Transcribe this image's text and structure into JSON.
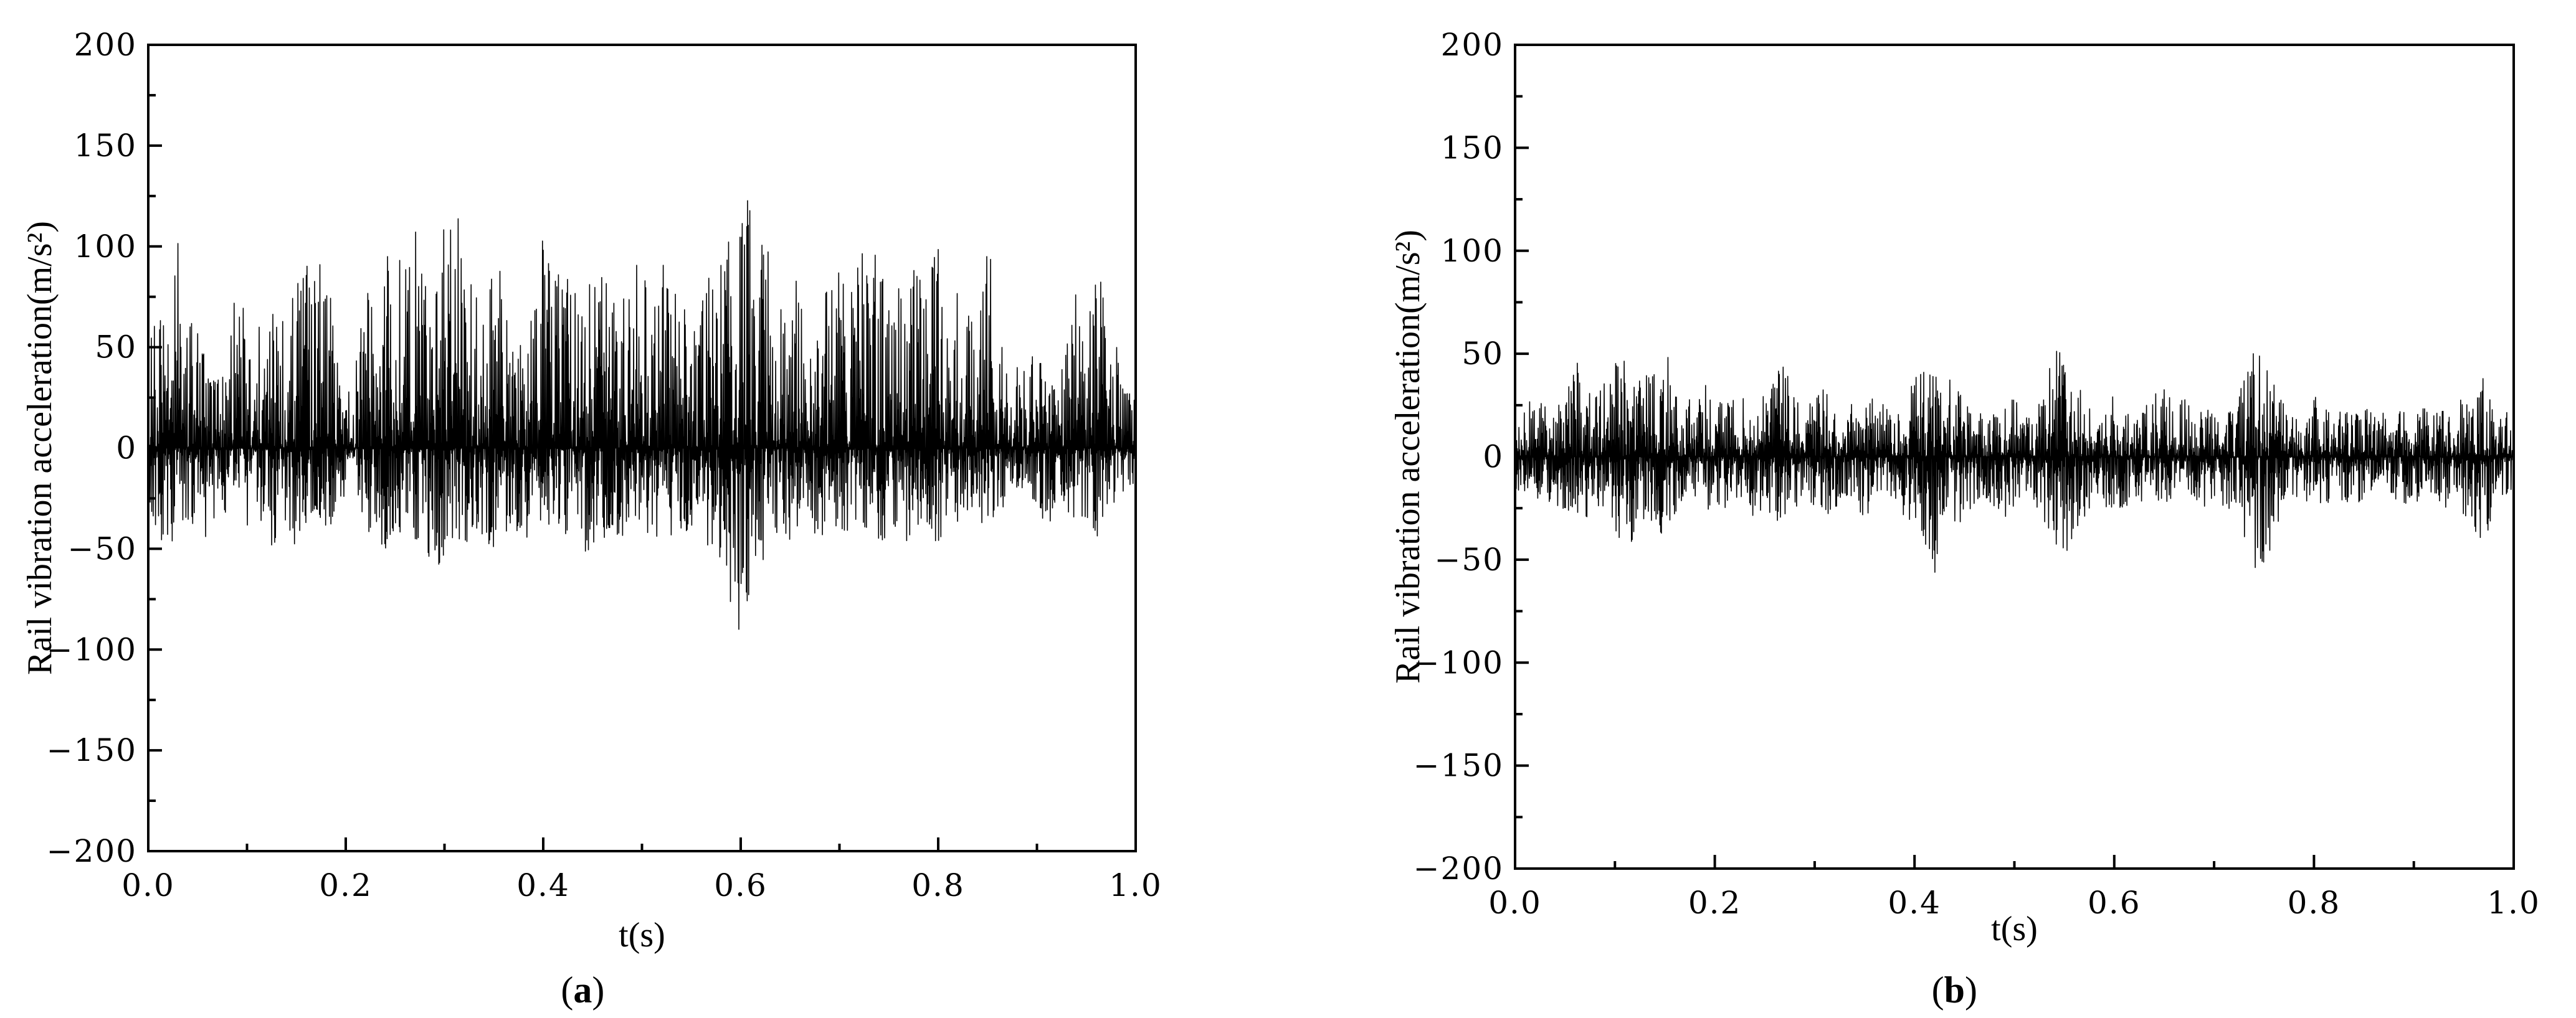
{
  "chart_data": [
    {
      "type": "line",
      "panel_label": "a",
      "title": "",
      "xlabel": "t(s)",
      "ylabel": "Rail vibration acceleration(m/s²)",
      "xlim": [
        0.0,
        1.0
      ],
      "ylim": [
        -200,
        200
      ],
      "xticks": [
        "0.0",
        "0.2",
        "0.4",
        "0.6",
        "0.8",
        "1.0"
      ],
      "yticks": [
        "200",
        "150",
        "100",
        "50",
        "0",
        "−50",
        "−100",
        "−150",
        "−200"
      ],
      "grid": false,
      "line_color": "#000000",
      "series": [
        {
          "x": [
            0.0,
            0.01,
            0.02,
            0.03,
            0.04,
            0.05,
            0.06,
            0.07,
            0.08,
            0.09,
            0.1,
            0.11,
            0.12,
            0.13,
            0.14,
            0.15,
            0.16,
            0.17,
            0.18,
            0.19,
            0.2,
            0.21,
            0.22,
            0.23,
            0.24,
            0.25,
            0.26,
            0.27,
            0.28,
            0.29,
            0.3,
            0.31,
            0.32,
            0.33,
            0.34,
            0.35,
            0.36,
            0.37,
            0.38,
            0.39,
            0.4,
            0.41,
            0.42,
            0.43,
            0.44,
            0.45,
            0.46,
            0.47,
            0.48,
            0.49,
            0.5,
            0.51,
            0.52,
            0.53,
            0.54,
            0.55,
            0.56,
            0.57,
            0.58,
            0.59,
            0.6,
            0.61,
            0.62,
            0.63,
            0.64,
            0.65,
            0.66,
            0.67,
            0.68,
            0.69,
            0.7,
            0.71,
            0.72,
            0.73,
            0.74,
            0.75,
            0.76,
            0.77,
            0.78,
            0.79,
            0.8,
            0.81,
            0.82,
            0.83,
            0.84,
            0.85,
            0.86,
            0.87,
            0.88,
            0.89,
            0.9,
            0.91,
            0.92,
            0.93,
            0.94,
            0.95,
            0.96,
            0.97,
            0.98,
            0.99,
            1.0
          ],
          "max": [
            55,
            68,
            60,
            105,
            70,
            60,
            45,
            35,
            50,
            85,
            75,
            60,
            95,
            75,
            60,
            100,
            95,
            90,
            100,
            45,
            30,
            40,
            90,
            70,
            95,
            110,
            90,
            110,
            105,
            100,
            125,
            135,
            110,
            90,
            60,
            95,
            85,
            60,
            50,
            75,
            105,
            100,
            80,
            95,
            90,
            95,
            85,
            90,
            100,
            95,
            95,
            85,
            100,
            90,
            95,
            80,
            80,
            95,
            100,
            120,
            110,
            130,
            100,
            105,
            70,
            85,
            95,
            80,
            80,
            85,
            95,
            80,
            100,
            90,
            100,
            70,
            80,
            95,
            85,
            90,
            100,
            60,
            85,
            75,
            55,
            100,
            80,
            35,
            45,
            35,
            55,
            40,
            30,
            50,
            80,
            60,
            85,
            105,
            60,
            30,
            25
          ],
          "min": [
            -25,
            -45,
            -50,
            -45,
            -40,
            -35,
            -50,
            -30,
            -35,
            -40,
            -40,
            -35,
            -45,
            -55,
            -40,
            -50,
            -45,
            -45,
            -50,
            -30,
            -25,
            -25,
            -40,
            -45,
            -50,
            -45,
            -40,
            -45,
            -55,
            -60,
            -55,
            -45,
            -50,
            -40,
            -45,
            -50,
            -45,
            -40,
            -45,
            -45,
            -35,
            -40,
            -45,
            -50,
            -50,
            -55,
            -45,
            -50,
            -45,
            -45,
            -40,
            -45,
            -50,
            -45,
            -50,
            -40,
            -45,
            -50,
            -65,
            -80,
            -95,
            -70,
            -60,
            -55,
            -45,
            -50,
            -40,
            -50,
            -45,
            -40,
            -45,
            -50,
            -40,
            -45,
            -50,
            -45,
            -40,
            -50,
            -40,
            -40,
            -50,
            -30,
            -40,
            -35,
            -35,
            -45,
            -35,
            -25,
            -25,
            -25,
            -30,
            -40,
            -30,
            -35,
            -40,
            -35,
            -45,
            -35,
            -30,
            -25,
            -20
          ]
        }
      ]
    },
    {
      "type": "line",
      "panel_label": "b",
      "title": "",
      "xlabel": "t(s)",
      "ylabel": "Rail vibration acceleration(m/s²)",
      "xlim": [
        0.0,
        1.0
      ],
      "ylim": [
        -200,
        200
      ],
      "xticks": [
        "0.0",
        "0.2",
        "0.4",
        "0.6",
        "0.8",
        "1.0"
      ],
      "yticks": [
        "200",
        "150",
        "100",
        "50",
        "0",
        "−50",
        "−100",
        "−150",
        "−200"
      ],
      "grid": false,
      "line_color": "#000000",
      "series": [
        {
          "x": [
            0.0,
            0.01,
            0.02,
            0.03,
            0.04,
            0.05,
            0.06,
            0.07,
            0.08,
            0.09,
            0.1,
            0.11,
            0.12,
            0.13,
            0.14,
            0.15,
            0.16,
            0.17,
            0.18,
            0.19,
            0.2,
            0.21,
            0.22,
            0.23,
            0.24,
            0.25,
            0.26,
            0.27,
            0.28,
            0.29,
            0.3,
            0.31,
            0.32,
            0.33,
            0.34,
            0.35,
            0.36,
            0.37,
            0.38,
            0.39,
            0.4,
            0.41,
            0.42,
            0.43,
            0.44,
            0.45,
            0.46,
            0.47,
            0.48,
            0.49,
            0.5,
            0.51,
            0.52,
            0.53,
            0.54,
            0.55,
            0.56,
            0.57,
            0.58,
            0.59,
            0.6,
            0.61,
            0.62,
            0.63,
            0.64,
            0.65,
            0.66,
            0.67,
            0.68,
            0.69,
            0.7,
            0.71,
            0.72,
            0.73,
            0.74,
            0.75,
            0.76,
            0.77,
            0.78,
            0.79,
            0.8,
            0.81,
            0.82,
            0.83,
            0.84,
            0.85,
            0.86,
            0.87,
            0.88,
            0.89,
            0.9,
            0.91,
            0.92,
            0.93,
            0.94,
            0.95,
            0.96,
            0.97,
            0.98,
            0.99,
            1.0
          ],
          "max": [
            20,
            30,
            25,
            35,
            25,
            30,
            50,
            35,
            30,
            40,
            45,
            55,
            35,
            40,
            45,
            60,
            40,
            30,
            25,
            35,
            30,
            25,
            30,
            35,
            30,
            35,
            40,
            45,
            30,
            25,
            30,
            35,
            25,
            20,
            30,
            25,
            30,
            25,
            20,
            25,
            40,
            45,
            45,
            35,
            40,
            30,
            20,
            25,
            20,
            25,
            30,
            20,
            25,
            35,
            55,
            65,
            50,
            35,
            20,
            25,
            30,
            25,
            20,
            25,
            30,
            35,
            25,
            30,
            20,
            25,
            20,
            25,
            30,
            40,
            60,
            55,
            35,
            25,
            20,
            25,
            30,
            25,
            20,
            25,
            20,
            25,
            20,
            25,
            20,
            25,
            20,
            25,
            20,
            25,
            25,
            30,
            35,
            40,
            20,
            25,
            20
          ],
          "min": [
            -15,
            -20,
            -25,
            -20,
            -25,
            -30,
            -25,
            -35,
            -25,
            -30,
            -35,
            -55,
            -35,
            -30,
            -35,
            -40,
            -30,
            -25,
            -20,
            -25,
            -30,
            -25,
            -20,
            -25,
            -30,
            -25,
            -30,
            -35,
            -25,
            -20,
            -25,
            -30,
            -25,
            -20,
            -25,
            -30,
            -25,
            -20,
            -25,
            -30,
            -40,
            -45,
            -60,
            -40,
            -35,
            -30,
            -25,
            -20,
            -25,
            -30,
            -25,
            -20,
            -25,
            -35,
            -45,
            -50,
            -40,
            -30,
            -20,
            -25,
            -30,
            -25,
            -20,
            -25,
            -30,
            -25,
            -20,
            -25,
            -20,
            -25,
            -20,
            -25,
            -30,
            -40,
            -55,
            -60,
            -40,
            -25,
            -20,
            -25,
            -20,
            -25,
            -20,
            -25,
            -20,
            -25,
            -20,
            -25,
            -20,
            -25,
            -20,
            -25,
            -20,
            -25,
            -25,
            -30,
            -35,
            -45,
            -25,
            -20,
            -15
          ]
        }
      ]
    }
  ]
}
